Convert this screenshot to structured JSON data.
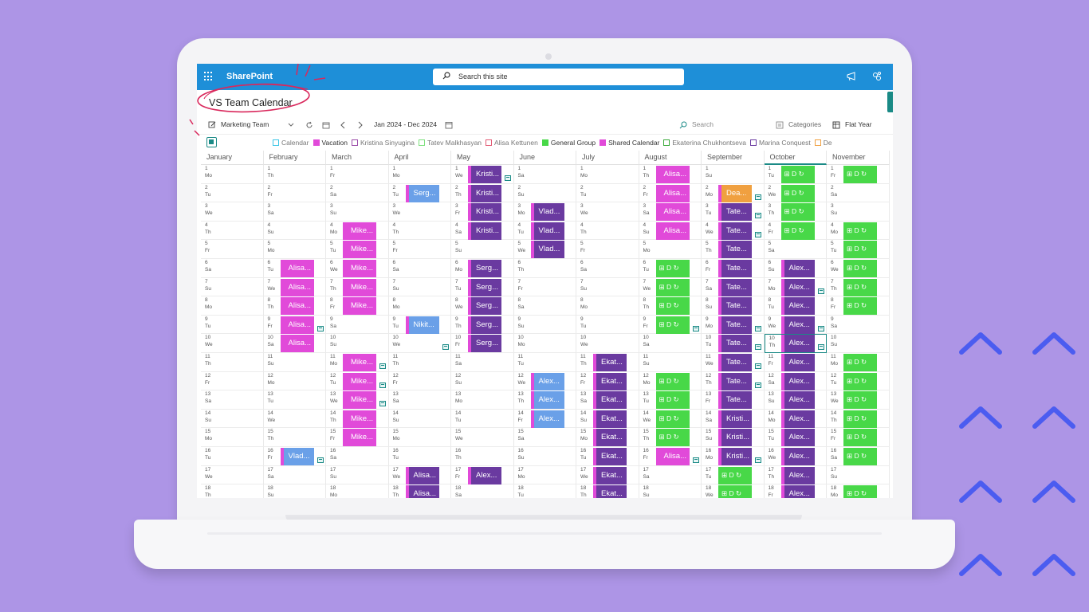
{
  "app": {
    "name": "SharePoint"
  },
  "search": {
    "placeholder": "Search this site"
  },
  "page": {
    "title": "VS Team Calendar"
  },
  "toolbar": {
    "team": "Marketing Team",
    "range": "Jan 2024 - Dec 2024",
    "search": "Search",
    "categories": "Categories",
    "view": "Flat Year"
  },
  "legend": [
    {
      "label": "Calendar",
      "color": "#3cc6e6",
      "filled": false
    },
    {
      "label": "Vacation",
      "color": "#e14ad9",
      "filled": true
    },
    {
      "label": "Kristina Sinyugina",
      "color": "#9a4aa8",
      "filled": false
    },
    {
      "label": "Tatev Malkhasyan",
      "color": "#7ee07e",
      "filled": false
    },
    {
      "label": "Alisa Kettunen",
      "color": "#e25a74",
      "filled": false
    },
    {
      "label": "General Group",
      "color": "#48d848",
      "filled": true
    },
    {
      "label": "Shared Calendar",
      "color": "#e14ad9",
      "filled": true
    },
    {
      "label": "Ekaterina Chukhontseva",
      "color": "#3aaa3a",
      "filled": false
    },
    {
      "label": "Marina Conquest",
      "color": "#6a3aa0",
      "filled": false
    },
    {
      "label": "De",
      "color": "#f0a040",
      "filled": false
    }
  ],
  "months": [
    "January",
    "February",
    "March",
    "April",
    "May",
    "June",
    "July",
    "August",
    "September",
    "October",
    "November"
  ],
  "active_month": "October",
  "days": [
    [
      "1 Mo",
      "2 Tu",
      "3 We",
      "4 Th",
      "5 Fr",
      "6 Sa",
      "7 Su",
      "8 Mo",
      "9 Tu",
      "10 We",
      "11 Th",
      "12 Fr",
      "13 Sa",
      "14 Su",
      "15 Mo",
      "16 Tu",
      "17 We",
      "18 Th"
    ],
    [
      "1 Th",
      "2 Fr",
      "3 Sa",
      "4 Su",
      "5 Mo",
      "6 Tu",
      "7 We",
      "8 Th",
      "9 Fr",
      "10 Sa",
      "11 Su",
      "12 Mo",
      "13 Tu",
      "14 We",
      "15 Th",
      "16 Fr",
      "17 Sa",
      "18 Su"
    ],
    [
      "1 Fr",
      "2 Sa",
      "3 Su",
      "4 Mo",
      "5 Tu",
      "6 We",
      "7 Th",
      "8 Fr",
      "9 Sa",
      "10 Su",
      "11 Mo",
      "12 Tu",
      "13 We",
      "14 Th",
      "15 Fr",
      "16 Sa",
      "17 Su",
      "18 Mo"
    ],
    [
      "1 Mo",
      "2 Tu",
      "3 We",
      "4 Th",
      "5 Fr",
      "6 Sa",
      "7 Su",
      "8 Mo",
      "9 Tu",
      "10 We",
      "11 Th",
      "12 Fr",
      "13 Sa",
      "14 Su",
      "15 Mo",
      "16 Tu",
      "17 We",
      "18 Th"
    ],
    [
      "1 We",
      "2 Th",
      "3 Fr",
      "4 Sa",
      "5 Su",
      "6 Mo",
      "7 Tu",
      "8 We",
      "9 Th",
      "10 Fr",
      "11 Sa",
      "12 Su",
      "13 Mo",
      "14 Tu",
      "15 We",
      "16 Th",
      "17 Fr",
      "18 Sa"
    ],
    [
      "1 Sa",
      "2 Su",
      "3 Mo",
      "4 Tu",
      "5 We",
      "6 Th",
      "7 Fr",
      "8 Sa",
      "9 Su",
      "10 Mo",
      "11 Tu",
      "12 We",
      "13 Th",
      "14 Fr",
      "15 Sa",
      "16 Su",
      "17 Mo",
      "18 Tu"
    ],
    [
      "1 Mo",
      "2 Tu",
      "3 We",
      "4 Th",
      "5 Fr",
      "6 Sa",
      "7 Su",
      "8 Mo",
      "9 Tu",
      "10 We",
      "11 Th",
      "12 Fr",
      "13 Sa",
      "14 Su",
      "15 Mo",
      "16 Tu",
      "17 We",
      "18 Th"
    ],
    [
      "1 Th",
      "2 Fr",
      "3 Sa",
      "4 Su",
      "5 Mo",
      "6 Tu",
      "7 We",
      "8 Th",
      "9 Fr",
      "10 Sa",
      "11 Su",
      "12 Mo",
      "13 Tu",
      "14 We",
      "15 Th",
      "16 Fr",
      "17 Sa",
      "18 Su"
    ],
    [
      "1 Su",
      "2 Mo",
      "3 Tu",
      "4 We",
      "5 Th",
      "6 Fr",
      "7 Sa",
      "8 Su",
      "9 Mo",
      "10 Tu",
      "11 We",
      "12 Th",
      "13 Fr",
      "14 Sa",
      "15 Su",
      "16 Mo",
      "17 Tu",
      "18 We"
    ],
    [
      "1 Tu",
      "2 We",
      "3 Th",
      "4 Fr",
      "5 Sa",
      "6 Su",
      "7 Mo",
      "8 Tu",
      "9 We",
      "10 Th",
      "11 Fr",
      "12 Sa",
      "13 Su",
      "14 Mo",
      "15 Tu",
      "16 We",
      "17 Th",
      "18 Fr"
    ],
    [
      "1 Fr",
      "2 Sa",
      "3 Su",
      "4 Mo",
      "5 Tu",
      "6 We",
      "7 Th",
      "8 Fr",
      "9 Sa",
      "10 Su",
      "11 Mo",
      "12 Tu",
      "13 We",
      "14 Th",
      "15 Fr",
      "16 Sa",
      "17 Su",
      "18 Mo"
    ]
  ],
  "today": {
    "month": 9,
    "day": 10
  },
  "events": [
    {
      "month": 1,
      "from": 6,
      "to": 10,
      "label": "Alisa...",
      "color": "#e14ad9",
      "mark_day": 9
    },
    {
      "month": 1,
      "from": 16,
      "to": 16,
      "label": "Vlad...",
      "color": "#6aa0e8",
      "border": "#e14ad9",
      "mark_day": 16
    },
    {
      "month": 2,
      "from": 4,
      "to": 8,
      "label": "Mike...",
      "color": "#e14ad9"
    },
    {
      "month": 2,
      "from": 11,
      "to": 15,
      "label": "Mike...",
      "color": "#e14ad9",
      "mark_days": [
        11,
        12,
        13
      ]
    },
    {
      "month": 3,
      "from": 2,
      "to": 2,
      "label": "Serg...",
      "color": "#6aa0e8",
      "border": "#e14ad9"
    },
    {
      "month": 3,
      "from": 9,
      "to": 9,
      "label": "Nikit...",
      "color": "#6aa0e8",
      "border": "#e14ad9",
      "mark_day": 10
    },
    {
      "month": 3,
      "from": 17,
      "to": 18,
      "label": "Alisa...",
      "color": "#6a3aa0",
      "border": "#e14ad9"
    },
    {
      "month": 4,
      "from": 1,
      "to": 4,
      "label": "Kristi...",
      "color": "#6a3aa0",
      "border": "#e14ad9",
      "mark_day": 1
    },
    {
      "month": 4,
      "from": 6,
      "to": 10,
      "label": "Serg...",
      "color": "#6a3aa0",
      "border": "#e14ad9"
    },
    {
      "month": 4,
      "from": 17,
      "to": 17,
      "label": "Alex...",
      "color": "#6a3aa0",
      "border": "#e14ad9"
    },
    {
      "month": 5,
      "from": 3,
      "to": 5,
      "label": "Vlad...",
      "color": "#6a3aa0",
      "border": "#e14ad9"
    },
    {
      "month": 5,
      "from": 12,
      "to": 14,
      "label": "Alex...",
      "color": "#6aa0e8",
      "border": "#e14ad9"
    },
    {
      "month": 6,
      "from": 11,
      "to": 18,
      "label": "Ekat...",
      "color": "#6a3aa0",
      "border": "#e14ad9"
    },
    {
      "month": 7,
      "from": 1,
      "to": 4,
      "label": "Alisa...",
      "color": "#e14ad9"
    },
    {
      "month": 7,
      "from": 6,
      "to": 9,
      "label": "⊞ D ↻",
      "color": "#48d848",
      "green": true,
      "mark_day": 9
    },
    {
      "month": 7,
      "from": 12,
      "to": 15,
      "label": "⊞ D ↻",
      "color": "#48d848",
      "green": true
    },
    {
      "month": 7,
      "from": 16,
      "to": 16,
      "label": "Alisa...",
      "color": "#e14ad9",
      "mark_day": 16
    },
    {
      "month": 8,
      "from": 2,
      "to": 2,
      "label": "Dea...",
      "color": "#f0a040",
      "border": "#e14ad9",
      "mark_day": 2
    },
    {
      "month": 8,
      "from": 3,
      "to": 13,
      "label": "Tate...",
      "color": "#6a3aa0",
      "border": "#e14ad9",
      "mark_days": [
        3,
        4,
        9,
        10,
        11,
        12
      ]
    },
    {
      "month": 8,
      "from": 14,
      "to": 16,
      "label": "Kristi...",
      "color": "#6a3aa0",
      "border": "#e14ad9",
      "mark_day": 16
    },
    {
      "month": 8,
      "from": 17,
      "to": 18,
      "label": "⊞ D ↻",
      "color": "#48d848",
      "green": true
    },
    {
      "month": 9,
      "from": 1,
      "to": 4,
      "label": "⊞ D ↻",
      "color": "#48d848",
      "green": true
    },
    {
      "month": 9,
      "from": 6,
      "to": 18,
      "label": "Alex...",
      "color": "#6a3aa0",
      "border": "#e14ad9",
      "mark_days": [
        7,
        9,
        10
      ]
    },
    {
      "month": 10,
      "from": 1,
      "to": 1,
      "label": "⊞ D ↻",
      "color": "#48d848",
      "green": true
    },
    {
      "month": 10,
      "from": 4,
      "to": 8,
      "label": "⊞ D ↻",
      "color": "#48d848",
      "green": true
    },
    {
      "month": 10,
      "from": 11,
      "to": 16,
      "label": "⊞ D ↻",
      "color": "#48d848",
      "green": true
    },
    {
      "month": 10,
      "from": 18,
      "to": 18,
      "label": "⊞ D ↻",
      "color": "#48d848",
      "green": true
    }
  ]
}
